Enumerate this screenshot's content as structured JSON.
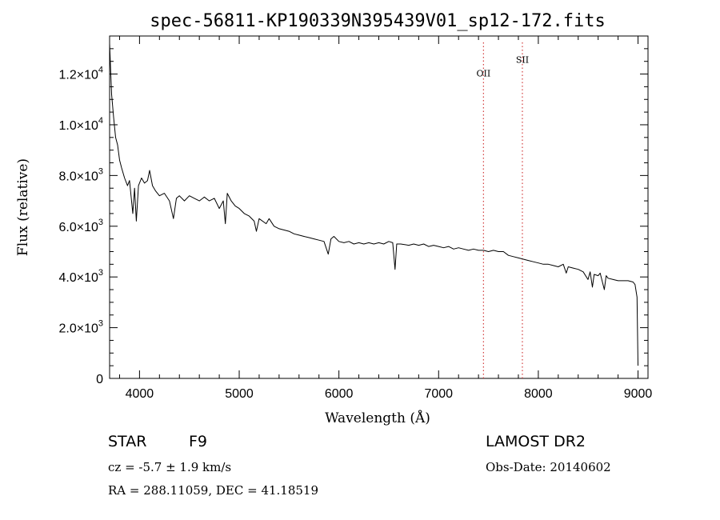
{
  "chart_data": {
    "type": "line",
    "title": "spec-56811-KP190339N395439V01_sp12-172.fits",
    "xlabel": "Wavelength (Å)",
    "ylabel": "Flux (relative)",
    "xlim": [
      3700,
      9100
    ],
    "ylim": [
      0,
      13500
    ],
    "x_ticks": [
      {
        "value": 4000,
        "label": "4000"
      },
      {
        "value": 5000,
        "label": "5000"
      },
      {
        "value": 6000,
        "label": "6000"
      },
      {
        "value": 7000,
        "label": "7000"
      },
      {
        "value": 8000,
        "label": "8000"
      },
      {
        "value": 9000,
        "label": "9000"
      }
    ],
    "y_ticks": [
      {
        "value": 0,
        "mantissa": "0",
        "exp": ""
      },
      {
        "value": 2000,
        "mantissa": "2.0×10",
        "exp": "3"
      },
      {
        "value": 4000,
        "mantissa": "4.0×10",
        "exp": "3"
      },
      {
        "value": 6000,
        "mantissa": "6.0×10",
        "exp": "3"
      },
      {
        "value": 8000,
        "mantissa": "8.0×10",
        "exp": "3"
      },
      {
        "value": 10000,
        "mantissa": "1.0×10",
        "exp": "4"
      },
      {
        "value": 12000,
        "mantissa": "1.2×10",
        "exp": "4"
      }
    ],
    "series": [
      {
        "color": "#000000",
        "points": [
          [
            3700,
            13200
          ],
          [
            3720,
            11200
          ],
          [
            3740,
            10300
          ],
          [
            3760,
            9500
          ],
          [
            3780,
            9200
          ],
          [
            3800,
            8600
          ],
          [
            3820,
            8300
          ],
          [
            3850,
            7900
          ],
          [
            3880,
            7600
          ],
          [
            3900,
            7800
          ],
          [
            3933,
            6500
          ],
          [
            3950,
            7500
          ],
          [
            3968,
            6200
          ],
          [
            3990,
            7600
          ],
          [
            4020,
            7900
          ],
          [
            4050,
            7700
          ],
          [
            4080,
            7800
          ],
          [
            4101,
            8200
          ],
          [
            4130,
            7600
          ],
          [
            4160,
            7400
          ],
          [
            4200,
            7200
          ],
          [
            4250,
            7300
          ],
          [
            4300,
            7000
          ],
          [
            4340,
            6300
          ],
          [
            4370,
            7100
          ],
          [
            4400,
            7200
          ],
          [
            4450,
            7000
          ],
          [
            4500,
            7200
          ],
          [
            4550,
            7100
          ],
          [
            4600,
            7000
          ],
          [
            4650,
            7150
          ],
          [
            4700,
            7000
          ],
          [
            4750,
            7100
          ],
          [
            4800,
            6700
          ],
          [
            4840,
            7000
          ],
          [
            4861,
            6100
          ],
          [
            4880,
            7300
          ],
          [
            4920,
            7000
          ],
          [
            4960,
            6800
          ],
          [
            5000,
            6700
          ],
          [
            5050,
            6500
          ],
          [
            5100,
            6400
          ],
          [
            5150,
            6200
          ],
          [
            5172,
            5800
          ],
          [
            5200,
            6300
          ],
          [
            5270,
            6100
          ],
          [
            5300,
            6300
          ],
          [
            5350,
            6000
          ],
          [
            5400,
            5900
          ],
          [
            5450,
            5850
          ],
          [
            5500,
            5800
          ],
          [
            5550,
            5700
          ],
          [
            5600,
            5650
          ],
          [
            5650,
            5600
          ],
          [
            5700,
            5550
          ],
          [
            5750,
            5500
          ],
          [
            5800,
            5450
          ],
          [
            5850,
            5400
          ],
          [
            5893,
            4900
          ],
          [
            5920,
            5500
          ],
          [
            5950,
            5600
          ],
          [
            6000,
            5400
          ],
          [
            6050,
            5350
          ],
          [
            6100,
            5400
          ],
          [
            6150,
            5300
          ],
          [
            6200,
            5350
          ],
          [
            6250,
            5300
          ],
          [
            6300,
            5350
          ],
          [
            6350,
            5300
          ],
          [
            6400,
            5350
          ],
          [
            6450,
            5300
          ],
          [
            6500,
            5400
          ],
          [
            6540,
            5350
          ],
          [
            6563,
            4300
          ],
          [
            6580,
            5300
          ],
          [
            6620,
            5300
          ],
          [
            6700,
            5250
          ],
          [
            6750,
            5300
          ],
          [
            6800,
            5250
          ],
          [
            6850,
            5300
          ],
          [
            6900,
            5200
          ],
          [
            6950,
            5250
          ],
          [
            7000,
            5200
          ],
          [
            7050,
            5150
          ],
          [
            7100,
            5200
          ],
          [
            7150,
            5100
          ],
          [
            7200,
            5150
          ],
          [
            7250,
            5100
          ],
          [
            7300,
            5050
          ],
          [
            7350,
            5100
          ],
          [
            7400,
            5050
          ],
          [
            7450,
            5050
          ],
          [
            7500,
            5000
          ],
          [
            7550,
            5050
          ],
          [
            7600,
            5000
          ],
          [
            7650,
            5000
          ],
          [
            7700,
            4850
          ],
          [
            7750,
            4800
          ],
          [
            7800,
            4750
          ],
          [
            7850,
            4700
          ],
          [
            7900,
            4650
          ],
          [
            7950,
            4600
          ],
          [
            8000,
            4550
          ],
          [
            8050,
            4500
          ],
          [
            8100,
            4500
          ],
          [
            8150,
            4450
          ],
          [
            8200,
            4400
          ],
          [
            8250,
            4500
          ],
          [
            8280,
            4150
          ],
          [
            8300,
            4400
          ],
          [
            8350,
            4350
          ],
          [
            8400,
            4300
          ],
          [
            8450,
            4200
          ],
          [
            8498,
            3900
          ],
          [
            8520,
            4200
          ],
          [
            8542,
            3600
          ],
          [
            8560,
            4100
          ],
          [
            8600,
            4050
          ],
          [
            8620,
            4150
          ],
          [
            8662,
            3500
          ],
          [
            8680,
            4050
          ],
          [
            8700,
            3950
          ],
          [
            8750,
            3900
          ],
          [
            8800,
            3850
          ],
          [
            8850,
            3850
          ],
          [
            8900,
            3850
          ],
          [
            8950,
            3800
          ],
          [
            8970,
            3700
          ],
          [
            8990,
            3200
          ],
          [
            9000,
            500
          ]
        ]
      }
    ],
    "emission_lines": [
      {
        "label": "OII",
        "x": 7450,
        "label_y": 11900,
        "color": "#d23c3c"
      },
      {
        "label": "SII",
        "x": 7840,
        "label_y": 12450,
        "color": "#d23c3c"
      }
    ]
  },
  "info": {
    "object_class": "STAR",
    "subclass": "F9",
    "redshift_line": "cz = -5.7 ± 1.9 km/s",
    "coords_line": "RA = 288.11059, DEC =  41.18519",
    "survey": "LAMOST DR2",
    "obs_date_line": "Obs-Date: 20140602"
  }
}
